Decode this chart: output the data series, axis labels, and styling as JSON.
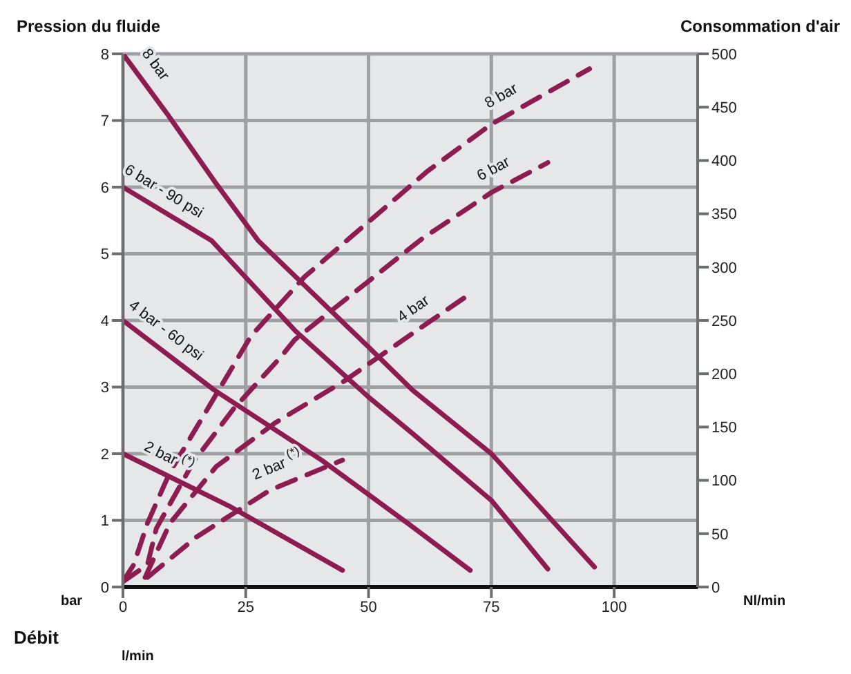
{
  "chart_data": {
    "type": "line",
    "ylabel": "Pression du fluide",
    "y2label": "Consommation d'air",
    "xlabel": "Débit",
    "annotations": [
      "bar",
      "Nl/min",
      "l/min"
    ],
    "xlim": [
      0,
      117
    ],
    "xticks": [
      0,
      25,
      50,
      75,
      100
    ],
    "ylim": [
      0,
      8
    ],
    "yticks": [
      0,
      1,
      2,
      3,
      4,
      5,
      6,
      7,
      8
    ],
    "y2lim": [
      0,
      500
    ],
    "y2ticks": [
      0,
      50,
      100,
      150,
      200,
      250,
      300,
      350,
      400,
      450,
      500
    ],
    "grid": true,
    "marker": "none",
    "series": [
      {
        "name": "8 bar",
        "color": "#8c1c52",
        "line_style": "solid",
        "x": [
          0,
          9,
          19,
          27.5,
          50,
          59,
          75,
          96
        ],
        "values": [
          8,
          7.1,
          6.05,
          5.2,
          3.6,
          2.95,
          2.0,
          0.3
        ]
      },
      {
        "name": "6 bar - 90 psi",
        "color": "#8c1c52",
        "line_style": "solid",
        "x": [
          0,
          18,
          35,
          50,
          59,
          75,
          86.5
        ],
        "values": [
          6,
          5.2,
          3.85,
          2.85,
          2.3,
          1.3,
          0.27
        ]
      },
      {
        "name": "4 bar - 60 psi",
        "color": "#8c1c52",
        "line_style": "solid",
        "x": [
          0,
          18.5,
          40.5,
          59,
          70.7
        ],
        "values": [
          4,
          2.96,
          1.9,
          0.9,
          0.25
        ]
      },
      {
        "name": "2 bar $^{(*)}$",
        "color": "#8c1c52",
        "line_style": "solid",
        "x": [
          0,
          22,
          44.7
        ],
        "values": [
          2,
          1.2,
          0.25
        ]
      },
      {
        "name": "8 bar",
        "color": "#8c1c52",
        "line_style": "dashed",
        "axis": "y2",
        "x": [
          0,
          2.2,
          5,
          9.6,
          18,
          26,
          37,
          62,
          75,
          95
        ],
        "values": [
          5,
          21,
          60,
          108,
          173,
          235,
          291,
          390,
          434,
          486
        ]
      },
      {
        "name": "6 bar",
        "color": "#8c1c52",
        "line_style": "dashed",
        "axis": "y2",
        "x": [
          0,
          5,
          6.8,
          14.3,
          22.5,
          32,
          35,
          61,
          75,
          86.5
        ],
        "values": [
          5,
          21,
          55,
          117,
          167,
          215,
          232,
          327,
          370,
          398
        ]
      },
      {
        "name": "4 bar",
        "color": "#8c1c52",
        "line_style": "dashed",
        "axis": "y2",
        "x": [
          4.5,
          9.6,
          19,
          31,
          45,
          59,
          71
        ],
        "values": [
          9,
          60,
          113,
          154,
          193,
          238,
          276
        ]
      },
      {
        "name": "2 bar $^{(*)}$",
        "color": "#8c1c52",
        "line_style": "dashed",
        "axis": "y2",
        "x": [
          5,
          15,
          30,
          44.7
        ],
        "values": [
          9,
          47,
          91,
          119
        ]
      }
    ]
  }
}
